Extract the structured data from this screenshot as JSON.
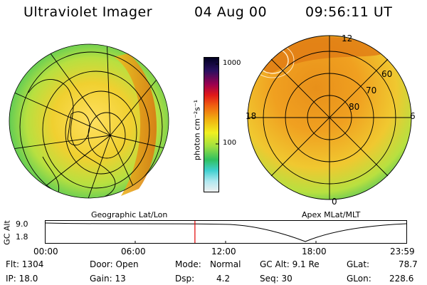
{
  "header": {
    "title": "Ultraviolet Imager",
    "date": "04 Aug 00",
    "time": "09:56:11 UT"
  },
  "colorbar": {
    "label": "photon cm⁻²s⁻¹",
    "ticks": [
      "1000",
      "100"
    ]
  },
  "left_map": {
    "caption": "Geographic Lat/Lon"
  },
  "right_map": {
    "caption": "Apex MLat/MLT",
    "mlt_labels": {
      "top": "12",
      "left": "18",
      "right": "6",
      "bottom": "0"
    },
    "lat_labels": [
      "60",
      "70",
      "80"
    ]
  },
  "timeline": {
    "ylabel": "GC Alt",
    "ytick_top": "9.0",
    "ytick_bottom": "1.8",
    "xticks": [
      "00:00",
      "06:00",
      "12:00",
      "18:00",
      "23:59"
    ],
    "marker_time_fraction": 0.414
  },
  "info": {
    "flt": "Flt: 1304",
    "ip": "IP: 18.0",
    "door": "Door: Open",
    "gain": "Gain: 13",
    "mode_label": "Mode:",
    "mode_value": "Normal",
    "dsp_label": "Dsp:",
    "dsp_value": "4.2",
    "gc_alt": "GC Alt: 9.1 Re",
    "seq": "Seq: 30",
    "glat_label": "GLat:",
    "glat_value": "78.7",
    "glon_label": "GLon:",
    "glon_value": "228.6"
  },
  "colors": {
    "marker": "#e00000",
    "aurora_core": "#e08a1a",
    "aurora_mid": "#f0c020",
    "aurora_edge": "#30c060"
  }
}
